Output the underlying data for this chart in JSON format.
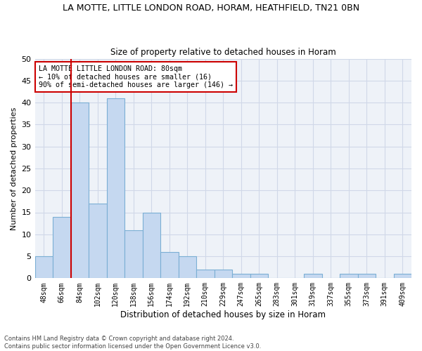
{
  "title": "LA MOTTE, LITTLE LONDON ROAD, HORAM, HEATHFIELD, TN21 0BN",
  "subtitle": "Size of property relative to detached houses in Horam",
  "xlabel": "Distribution of detached houses by size in Horam",
  "ylabel": "Number of detached properties",
  "bar_labels": [
    "48sqm",
    "66sqm",
    "84sqm",
    "102sqm",
    "120sqm",
    "138sqm",
    "156sqm",
    "174sqm",
    "192sqm",
    "210sqm",
    "229sqm",
    "247sqm",
    "265sqm",
    "283sqm",
    "301sqm",
    "319sqm",
    "337sqm",
    "355sqm",
    "373sqm",
    "391sqm",
    "409sqm"
  ],
  "bar_values": [
    5,
    14,
    40,
    17,
    41,
    11,
    15,
    6,
    5,
    2,
    2,
    1,
    1,
    0,
    0,
    1,
    0,
    1,
    1,
    0,
    1
  ],
  "bar_color": "#c5d8f0",
  "bar_edge_color": "#7bafd4",
  "grid_color": "#d0d8e8",
  "annotation_text_line1": "LA MOTTE LITTLE LONDON ROAD: 80sqm",
  "annotation_text_line2": "← 10% of detached houses are smaller (16)",
  "annotation_text_line3": "90% of semi-detached houses are larger (146) →",
  "vline_color": "#cc0000",
  "annotation_box_edge": "#cc0000",
  "footer_line1": "Contains HM Land Registry data © Crown copyright and database right 2024.",
  "footer_line2": "Contains public sector information licensed under the Open Government Licence v3.0.",
  "ylim": [
    0,
    50
  ],
  "yticks": [
    0,
    5,
    10,
    15,
    20,
    25,
    30,
    35,
    40,
    45,
    50
  ],
  "background_color": "#eef2f8",
  "vline_x_index": 1.5
}
